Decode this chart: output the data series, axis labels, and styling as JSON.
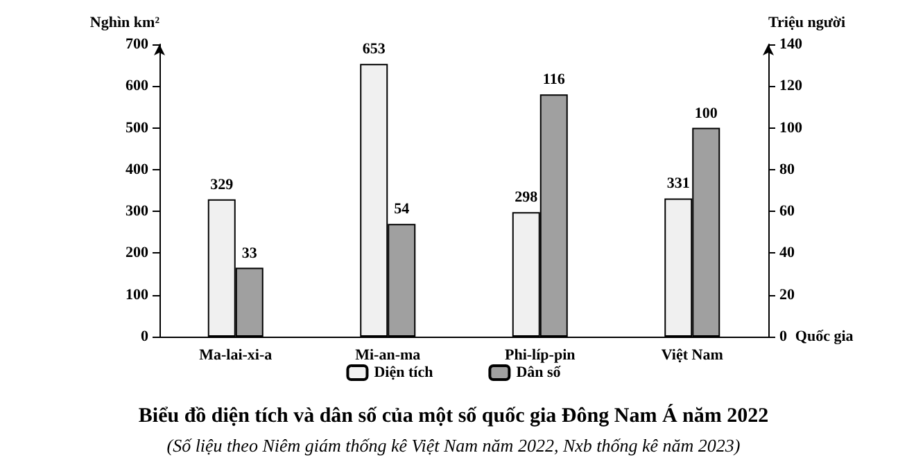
{
  "chart_data": {
    "type": "bar",
    "title": "Biểu đồ diện tích và dân số của một số quốc gia Đông Nam Á năm 2022",
    "subtitle": "(Số liệu theo Niêm giám thống kê Việt Nam năm 2022, Nxb thống kê năm 2023)",
    "xlabel": "Quốc gia",
    "ylabel": "Nghìn km²",
    "y2label": "Triệu người",
    "categories": [
      "Ma-lai-xi-a",
      "Mi-an-ma",
      "Phi-líp-pin",
      "Việt Nam"
    ],
    "series": [
      {
        "name": "Diện tích",
        "color": "#f0f0f0",
        "values": [
          329,
          653,
          298,
          331
        ]
      },
      {
        "name": "Dân số",
        "color": "#a0a0a0",
        "values": [
          33,
          54,
          116,
          100
        ],
        "axis": "y2"
      }
    ],
    "ylim": [
      0,
      700
    ],
    "yticks": [
      0,
      100,
      200,
      300,
      400,
      500,
      600,
      700
    ],
    "y2lim": [
      0,
      140
    ],
    "y2ticks": [
      0,
      20,
      40,
      60,
      80,
      100,
      120,
      140
    ],
    "data_labels": true,
    "legend": "bottom",
    "grid": false
  }
}
